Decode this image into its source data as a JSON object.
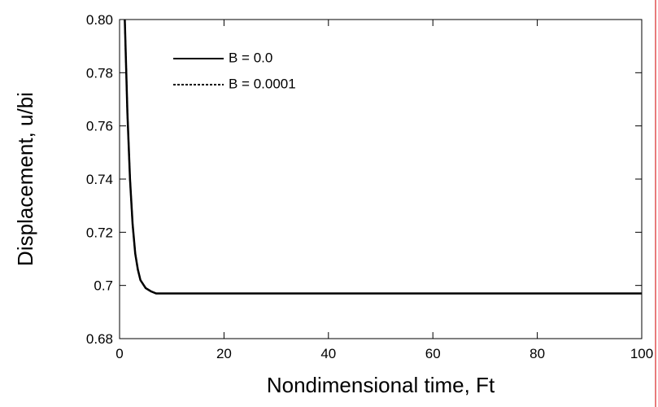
{
  "chart_data": {
    "type": "line",
    "xlabel": "Nondimensional time, Ft",
    "ylabel": "Displacement, u/bi",
    "x": [
      1,
      1.5,
      2,
      2.5,
      3,
      3.5,
      4,
      5,
      6,
      7,
      10,
      20,
      40,
      60,
      80,
      100
    ],
    "series": [
      {
        "name": "B = 0.0",
        "color": "#000000",
        "linestyle": "solid",
        "values": [
          0.8,
          0.765,
          0.74,
          0.723,
          0.712,
          0.706,
          0.702,
          0.699,
          0.6978,
          0.697,
          0.697,
          0.697,
          0.697,
          0.697,
          0.697,
          0.697
        ]
      },
      {
        "name": "B = 0.0001",
        "color": "#000000",
        "linestyle": "dashed",
        "values": [
          0.8,
          0.765,
          0.74,
          0.723,
          0.712,
          0.706,
          0.702,
          0.699,
          0.6978,
          0.697,
          0.697,
          0.697,
          0.697,
          0.697,
          0.697,
          0.697
        ]
      }
    ],
    "xlim": [
      0,
      100
    ],
    "xticks": [
      0,
      20,
      40,
      60,
      80,
      100
    ],
    "ylim": [
      0.68,
      0.8
    ],
    "yticks": [
      0.68,
      0.7,
      0.72,
      0.74,
      0.76,
      0.78,
      {
        "value": 0.8,
        "label": "0.80"
      }
    ],
    "legend": "upper left"
  }
}
